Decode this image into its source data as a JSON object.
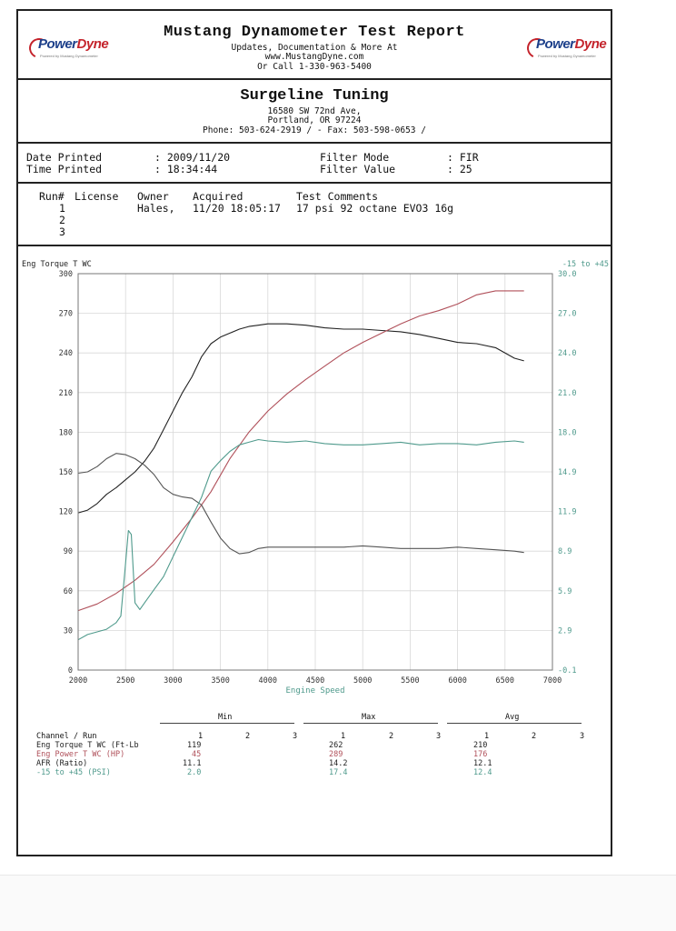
{
  "header": {
    "title": "Mustang Dynamometer Test Report",
    "line1": "Updates, Documentation & More At",
    "line2": "www.MustangDyne.com",
    "line3": "Or Call 1-330-963-5400",
    "logo_left": {
      "word_a": "Power",
      "word_b": "Dyne",
      "tagline": "Powered by Mustang Dynamometer"
    },
    "logo_right": {
      "word_a": "Power",
      "word_b": "Dyne",
      "tagline": "Powered by Mustang Dynamometer"
    }
  },
  "shop": {
    "name": "Surgeline Tuning",
    "address1": "16580 SW 72nd Ave,",
    "address2": "Portland, OR  97224",
    "phone": "Phone: 503-624-2919 /  - Fax: 503-598-0653 /"
  },
  "info": {
    "date_label": "Date Printed",
    "date_value": ": 2009/11/20",
    "time_label": "Time Printed",
    "time_value": ": 18:34:44",
    "filter_mode_label": "Filter Mode",
    "filter_mode_value": ": FIR",
    "filter_value_label": "Filter Value",
    "filter_value_value": ": 25"
  },
  "runs": {
    "headers": {
      "run": "Run#",
      "license": "License",
      "owner": "Owner",
      "acquired": "Acquired",
      "comments": "Test Comments"
    },
    "rows": [
      {
        "run": "1",
        "license": "",
        "owner": "Hales,",
        "acquired": "11/20 18:05:17",
        "comments": "17 psi 92 octane EVO3 16g"
      },
      {
        "run": "2",
        "license": "",
        "owner": "",
        "acquired": "",
        "comments": ""
      },
      {
        "run": "3",
        "license": "",
        "owner": "",
        "acquired": "",
        "comments": ""
      }
    ]
  },
  "colors": {
    "torque": "#222222",
    "power": "#b0505a",
    "afr": "#555555",
    "boost": "#4f9a8c",
    "grid": "#d8d8d8"
  },
  "chart_data": {
    "type": "line",
    "left_axis_label": "Eng Torque T WC",
    "right_axis_label": "-15 to +45",
    "xlabel": "Engine Speed",
    "xlim": [
      2000,
      7000
    ],
    "ylim_left": [
      0,
      300
    ],
    "ylim_right": [
      -0.1,
      30.0
    ],
    "x_ticks": [
      "2000",
      "2500",
      "3000",
      "3500",
      "4000",
      "4500",
      "5000",
      "5500",
      "6000",
      "6500",
      "7000"
    ],
    "y_ticks_left": [
      "0",
      "30",
      "60",
      "90",
      "120",
      "150",
      "180",
      "210",
      "240",
      "270",
      "300"
    ],
    "y_ticks_right": [
      "-0.1",
      "2.9",
      "5.9",
      "8.9",
      "11.9",
      "14.9",
      "18.0",
      "21.0",
      "24.0",
      "27.0",
      "30.0"
    ],
    "grid": true,
    "series": [
      {
        "name": "Eng Torque T WC",
        "axis": "left",
        "color_key": "torque",
        "x": [
          2000,
          2100,
          2200,
          2300,
          2400,
          2500,
          2600,
          2700,
          2800,
          2900,
          3000,
          3100,
          3200,
          3300,
          3400,
          3500,
          3600,
          3700,
          3800,
          3900,
          4000,
          4200,
          4400,
          4600,
          4800,
          5000,
          5200,
          5400,
          5600,
          5800,
          6000,
          6200,
          6400,
          6600,
          6700
        ],
        "y": [
          119,
          121,
          126,
          133,
          138,
          144,
          150,
          158,
          168,
          182,
          196,
          210,
          222,
          237,
          247,
          252,
          255,
          258,
          260,
          261,
          262,
          262,
          261,
          259,
          258,
          258,
          257,
          256,
          254,
          251,
          248,
          247,
          244,
          236,
          234
        ]
      },
      {
        "name": "Eng Power T WC",
        "axis": "left",
        "color_key": "power",
        "x": [
          2000,
          2200,
          2400,
          2600,
          2800,
          3000,
          3200,
          3400,
          3600,
          3800,
          4000,
          4200,
          4400,
          4600,
          4800,
          5000,
          5200,
          5400,
          5600,
          5800,
          6000,
          6200,
          6400,
          6600,
          6700
        ],
        "y": [
          45,
          50,
          58,
          68,
          80,
          97,
          115,
          135,
          160,
          180,
          196,
          209,
          220,
          230,
          240,
          248,
          255,
          262,
          268,
          272,
          277,
          284,
          287,
          287,
          287
        ]
      },
      {
        "name": "AFR",
        "axis": "left",
        "color_key": "afr",
        "x": [
          2000,
          2100,
          2200,
          2300,
          2400,
          2500,
          2600,
          2700,
          2800,
          2900,
          3000,
          3100,
          3200,
          3300,
          3400,
          3500,
          3600,
          3700,
          3800,
          3900,
          4000,
          4200,
          4400,
          4600,
          4800,
          5000,
          5200,
          5400,
          5600,
          5800,
          6000,
          6200,
          6400,
          6600,
          6700
        ],
        "y": [
          149,
          150,
          154,
          160,
          164,
          163,
          160,
          155,
          148,
          138,
          133,
          131,
          130,
          125,
          112,
          100,
          92,
          88,
          89,
          92,
          93,
          93,
          93,
          93,
          93,
          94,
          93,
          92,
          92,
          92,
          93,
          92,
          91,
          90,
          89
        ]
      },
      {
        "name": "-15 to +45",
        "axis": "right",
        "color_key": "boost",
        "x": [
          2000,
          2100,
          2200,
          2300,
          2400,
          2450,
          2500,
          2530,
          2560,
          2600,
          2650,
          2700,
          2800,
          2900,
          3000,
          3100,
          3200,
          3300,
          3400,
          3500,
          3600,
          3700,
          3800,
          3900,
          4000,
          4200,
          4400,
          4600,
          4800,
          5000,
          5200,
          5400,
          5600,
          5800,
          6000,
          6200,
          6400,
          6600,
          6700
        ],
        "y": [
          2.2,
          2.6,
          2.8,
          3.0,
          3.5,
          4.0,
          8.0,
          10.5,
          10.2,
          5.0,
          4.5,
          5.0,
          6.0,
          7.0,
          8.5,
          10.0,
          11.5,
          13.0,
          15.0,
          15.8,
          16.5,
          17.0,
          17.2,
          17.4,
          17.3,
          17.2,
          17.3,
          17.1,
          17.0,
          17.0,
          17.1,
          17.2,
          17.0,
          17.1,
          17.1,
          17.0,
          17.2,
          17.3,
          17.2
        ]
      }
    ]
  },
  "summary": {
    "groups": [
      "Min",
      "Max",
      "Avg"
    ],
    "header": {
      "label": "Channel / Run",
      "runs": [
        "1",
        "2",
        "3"
      ]
    },
    "rows": [
      {
        "label": "Eng Torque T WC (Ft-Lb",
        "min": "119",
        "max": "262",
        "avg": "210",
        "color_key": "torque"
      },
      {
        "label": "Eng Power T WC (HP)",
        "min": "45",
        "max": "289",
        "avg": "176",
        "color_key": "power"
      },
      {
        "label": "AFR (Ratio)",
        "min": "11.1",
        "max": "14.2",
        "avg": "12.1",
        "color_key": "torque"
      },
      {
        "label": "-15 to +45 (PSI)",
        "min": "2.0",
        "max": "17.4",
        "avg": "12.4",
        "color_key": "boost"
      }
    ]
  }
}
